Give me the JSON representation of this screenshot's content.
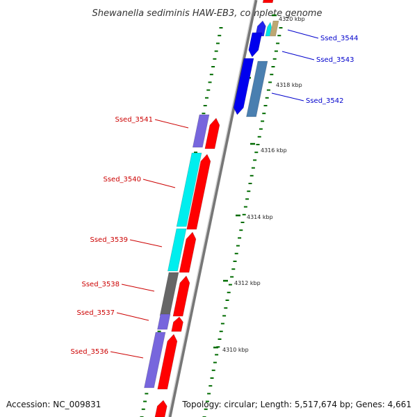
{
  "title": "Shewanella sediminis HAW-EB3, complete genome",
  "footer": {
    "accession": "Accession: NC_009831",
    "topology": "Topology: circular; Length: 5,517,674 bp; Genes: 4,661"
  },
  "colors": {
    "forward_label": "#cc0000",
    "reverse_label": "#0000cc",
    "backbone": "#999999",
    "tick": "#007700"
  },
  "kbp_markers": [
    {
      "label": "4320 kbp",
      "faded": true
    },
    {
      "label": "4318 kbp"
    },
    {
      "label": "4316 kbp"
    },
    {
      "label": "4314 kbp"
    },
    {
      "label": "4312 kbp"
    },
    {
      "label": "4310 kbp"
    }
  ],
  "gene_labels": [
    {
      "label": "Ssed_3544",
      "strand": "reverse"
    },
    {
      "label": "Ssed_3543",
      "strand": "reverse"
    },
    {
      "label": "Ssed_3542",
      "strand": "reverse"
    },
    {
      "label": "Ssed_3541",
      "strand": "forward"
    },
    {
      "label": "Ssed_3540",
      "strand": "forward"
    },
    {
      "label": "Ssed_3539",
      "strand": "forward"
    },
    {
      "label": "Ssed_3538",
      "strand": "forward"
    },
    {
      "label": "Ssed_3537",
      "strand": "forward"
    },
    {
      "label": "Ssed_3536",
      "strand": "forward"
    }
  ]
}
